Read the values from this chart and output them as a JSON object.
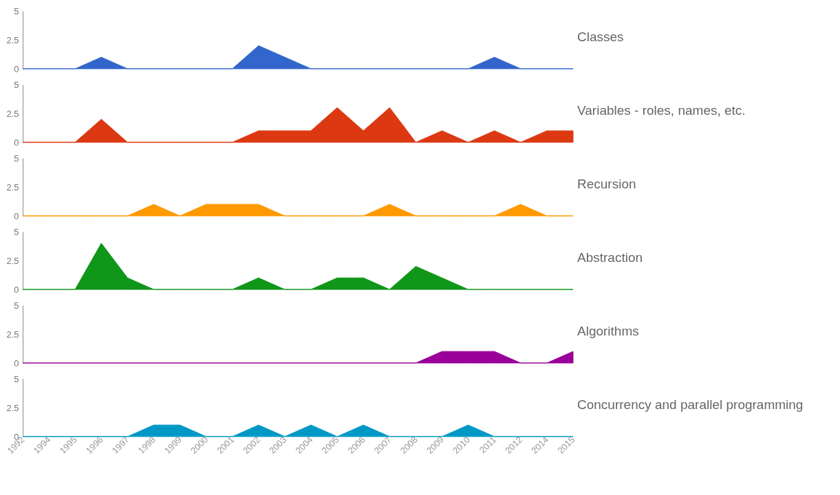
{
  "chart_data": [
    {
      "type": "area",
      "categories": [
        "1992",
        "1994",
        "1995",
        "1996",
        "1997",
        "1998",
        "1999",
        "2000",
        "2001",
        "2002",
        "2003",
        "2004",
        "2005",
        "2006",
        "2007",
        "2008",
        "2009",
        "2010",
        "2011",
        "2012",
        "2014",
        "2015"
      ],
      "series": [
        {
          "name": "Classes",
          "color": "#3366cc",
          "values": [
            0,
            0,
            0,
            1,
            0,
            0,
            0,
            0,
            0,
            2,
            1,
            0,
            0,
            0,
            0,
            0,
            0,
            0,
            1,
            0,
            0,
            0
          ]
        }
      ],
      "ylim": [
        0,
        5
      ],
      "yticks": [
        0,
        2.5,
        5
      ],
      "grid": false,
      "tick_labels": "y"
    },
    {
      "type": "area",
      "categories": [
        "1992",
        "1994",
        "1995",
        "1996",
        "1997",
        "1998",
        "1999",
        "2000",
        "2001",
        "2002",
        "2003",
        "2004",
        "2005",
        "2006",
        "2007",
        "2008",
        "2009",
        "2010",
        "2011",
        "2012",
        "2014",
        "2015"
      ],
      "series": [
        {
          "name": "Variables - roles, names, etc.",
          "color": "#dc3912",
          "values": [
            0,
            0,
            0,
            2,
            0,
            0,
            0,
            0,
            0,
            1,
            1,
            1,
            3,
            1,
            3,
            0,
            1,
            0,
            1,
            0,
            1,
            1
          ]
        }
      ],
      "ylim": [
        0,
        5
      ],
      "yticks": [
        0,
        2.5,
        5
      ],
      "grid": false,
      "tick_labels": "y"
    },
    {
      "type": "area",
      "categories": [
        "1992",
        "1994",
        "1995",
        "1996",
        "1997",
        "1998",
        "1999",
        "2000",
        "2001",
        "2002",
        "2003",
        "2004",
        "2005",
        "2006",
        "2007",
        "2008",
        "2009",
        "2010",
        "2011",
        "2012",
        "2014",
        "2015"
      ],
      "series": [
        {
          "name": "Recursion",
          "color": "#ff9900",
          "values": [
            0,
            0,
            0,
            0,
            0,
            1,
            0,
            1,
            1,
            1,
            0,
            0,
            0,
            0,
            1,
            0,
            0,
            0,
            0,
            1,
            0,
            0
          ]
        }
      ],
      "ylim": [
        0,
        5
      ],
      "yticks": [
        0,
        2.5,
        5
      ],
      "grid": false,
      "tick_labels": "y"
    },
    {
      "type": "area",
      "categories": [
        "1992",
        "1994",
        "1995",
        "1996",
        "1997",
        "1998",
        "1999",
        "2000",
        "2001",
        "2002",
        "2003",
        "2004",
        "2005",
        "2006",
        "2007",
        "2008",
        "2009",
        "2010",
        "2011",
        "2012",
        "2014",
        "2015"
      ],
      "series": [
        {
          "name": "Abstraction",
          "color": "#109618",
          "values": [
            0,
            0,
            0,
            4,
            1,
            0,
            0,
            0,
            0,
            1,
            0,
            0,
            1,
            1,
            0,
            2,
            1,
            0,
            0,
            0,
            0,
            0
          ]
        }
      ],
      "ylim": [
        0,
        5
      ],
      "yticks": [
        0,
        2.5,
        5
      ],
      "grid": false,
      "tick_labels": "y"
    },
    {
      "type": "area",
      "categories": [
        "1992",
        "1994",
        "1995",
        "1996",
        "1997",
        "1998",
        "1999",
        "2000",
        "2001",
        "2002",
        "2003",
        "2004",
        "2005",
        "2006",
        "2007",
        "2008",
        "2009",
        "2010",
        "2011",
        "2012",
        "2014",
        "2015"
      ],
      "series": [
        {
          "name": "Algorithms",
          "color": "#990099",
          "values": [
            0,
            0,
            0,
            0,
            0,
            0,
            0,
            0,
            0,
            0,
            0,
            0,
            0,
            0,
            0,
            0,
            1,
            1,
            1,
            0,
            0,
            1
          ]
        }
      ],
      "ylim": [
        0,
        5
      ],
      "yticks": [
        0,
        2.5,
        5
      ],
      "grid": false,
      "tick_labels": "y"
    },
    {
      "type": "area",
      "categories": [
        "1992",
        "1994",
        "1995",
        "1996",
        "1997",
        "1998",
        "1999",
        "2000",
        "2001",
        "2002",
        "2003",
        "2004",
        "2005",
        "2006",
        "2007",
        "2008",
        "2009",
        "2010",
        "2011",
        "2012",
        "2014",
        "2015"
      ],
      "series": [
        {
          "name": "Concurrency and parallel programming",
          "color": "#0099c6",
          "values": [
            0,
            0,
            0,
            0,
            0,
            1,
            1,
            0,
            0,
            1,
            0,
            1,
            0,
            1,
            0,
            0,
            0,
            1,
            0,
            0,
            0,
            0
          ]
        }
      ],
      "ylim": [
        0,
        5
      ],
      "yticks": [
        0,
        2.5,
        5
      ],
      "grid": false
    }
  ]
}
